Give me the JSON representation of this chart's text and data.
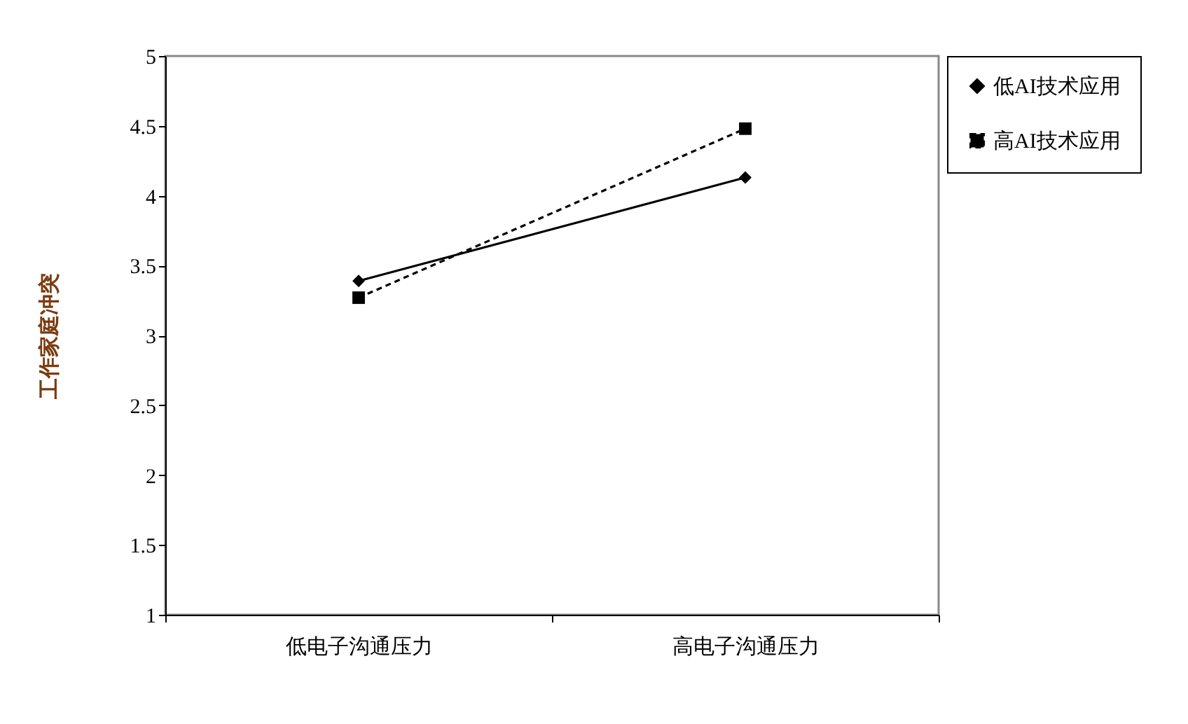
{
  "chart_data": {
    "type": "line",
    "categories": [
      "低电子沟通压力",
      "高电子沟通压力"
    ],
    "ylabel": "工作家庭冲突",
    "ylim": [
      1,
      5
    ],
    "yticks": [
      1,
      1.5,
      2,
      2.5,
      3,
      3.5,
      4,
      4.5,
      5
    ],
    "grid": false,
    "legend": "right",
    "series": [
      {
        "name": "低AI技术应用",
        "color": "#000000",
        "values": [
          3.39,
          4.13
        ],
        "marker": "diamond",
        "line_style": "solid"
      },
      {
        "name": "高AI技术应用",
        "color": "#000000",
        "values": [
          3.27,
          4.48
        ],
        "marker": "square",
        "line_style": "dashed"
      }
    ]
  }
}
